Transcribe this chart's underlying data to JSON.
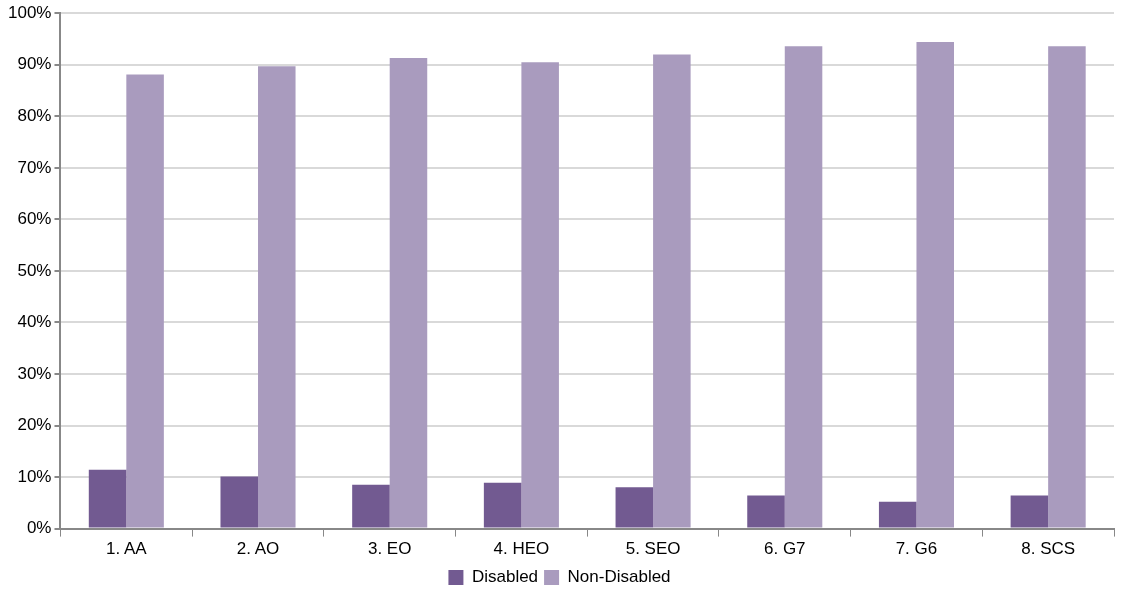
{
  "chart_data": {
    "type": "bar",
    "categories": [
      "1. AA",
      "2. AO",
      "3. EO",
      "4. HEO",
      "5. SEO",
      "6. G7",
      "7. G6",
      "8. SCS"
    ],
    "series": [
      {
        "name": "Disabled",
        "color": "#725a91",
        "values": [
          11.4,
          10.1,
          8.5,
          8.9,
          8.0,
          6.4,
          5.2,
          6.4
        ]
      },
      {
        "name": "Non-Disabled",
        "color": "#a99bbe",
        "values": [
          88.1,
          89.7,
          91.3,
          90.5,
          92.0,
          93.6,
          94.4,
          93.6
        ]
      }
    ],
    "ylim": [
      0,
      100
    ],
    "yticks": [
      {
        "value": 0,
        "label": "0%"
      },
      {
        "value": 10,
        "label": "10%"
      },
      {
        "value": 20,
        "label": "20%"
      },
      {
        "value": 30,
        "label": "30%"
      },
      {
        "value": 40,
        "label": "40%"
      },
      {
        "value": 50,
        "label": "50%"
      },
      {
        "value": 60,
        "label": "60%"
      },
      {
        "value": 70,
        "label": "70%"
      },
      {
        "value": 80,
        "label": "80%"
      },
      {
        "value": 90,
        "label": "90%"
      },
      {
        "value": 100,
        "label": "100%"
      }
    ],
    "grid": "y",
    "legend": "bottom"
  }
}
